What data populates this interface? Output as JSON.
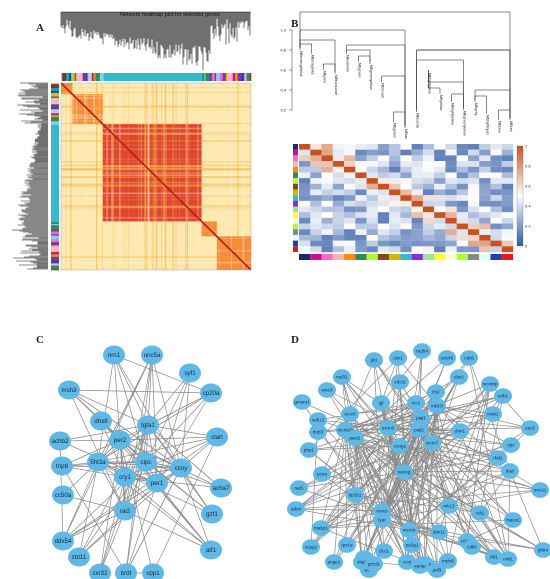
{
  "panels": {
    "A": {
      "label": "A",
      "title": "Network heatmap plot for selected genes"
    },
    "B": {
      "label": "B",
      "yticks": [
        "1.0",
        "0.8",
        "0.6",
        "0.4",
        "0.2"
      ],
      "modules": [
        "MEmidnightblue",
        "MEmagenta",
        "MEpink",
        "MEturquoise",
        "MEsalmon",
        "MEgreen",
        "MEgreenyellow",
        "MEbrown",
        "MEgreen",
        "MEtan",
        "MEpurple",
        "MElightgreen",
        "MEyellow",
        "MElightyellow",
        "MEgreenyellow",
        "MEgrey",
        "MElightcyan",
        "MEblue",
        "MEred"
      ],
      "colorbar_ticks": [
        "1",
        "0.8",
        "0.6",
        "0.4",
        "0.2",
        "0"
      ]
    },
    "C": {
      "label": "C",
      "nodes": [
        "nrn1",
        "unc5a",
        "syf1",
        "msh3",
        "dhx8",
        "cp20a",
        "tgfa1",
        "per2",
        "clart",
        "achb2",
        "5ht3a",
        "cipc",
        "ccny",
        "tripb",
        "cry1",
        "per1",
        "acha7",
        "cc50a",
        "rai2",
        "gzf1",
        "ddx54",
        "atf1",
        "zbt11",
        "cxr32",
        "brdt",
        "vpp1"
      ]
    },
    "D": {
      "label": "D",
      "nodes": [
        "glci",
        "cbx1",
        "rad54",
        "cdc45",
        "cdc6",
        "md31",
        "smc3",
        "cdc1t",
        "cbx2",
        "mcmbp",
        "gmem1",
        "igf",
        "rcc1",
        "lrs2",
        "mlh1",
        "ercc6",
        "msh2",
        "ndh13",
        "mcm10",
        "mcm3",
        "pial1",
        "mk67i",
        "esc2",
        "xpc",
        "bub3",
        "paxi1",
        "pial2",
        "rhd1",
        "pbp1",
        "ccng1",
        "mcm7",
        "dmt1",
        "pcna",
        "nanog",
        "dazl",
        "rad1",
        "tip1b1",
        "mk13",
        "maco",
        "mre11",
        "ddx4",
        "lyar",
        "cdt1",
        "maco1",
        "mabp1",
        "mcm4",
        "cdca7",
        "ghtm",
        "ccpg1",
        "tpx1a",
        "ddx11",
        "dcc1",
        "nle1",
        "nml1",
        "ange1",
        "wnt2",
        "mshi6",
        "rfd1",
        "rad9a",
        "skp2",
        "pa2g1",
        "cdk6",
        "kamp",
        "gmcl1",
        "ccnj",
        "psf3"
      ]
    }
  },
  "colors": {
    "node_fill": "#5fb8e6",
    "edge": "#8a8a8a",
    "heat_high": "#d9281a",
    "heat_mid": "#f5a623",
    "heat_low": "#fbe8a6",
    "corr_high": "#c6531f",
    "corr_low": "#2f59a6"
  }
}
